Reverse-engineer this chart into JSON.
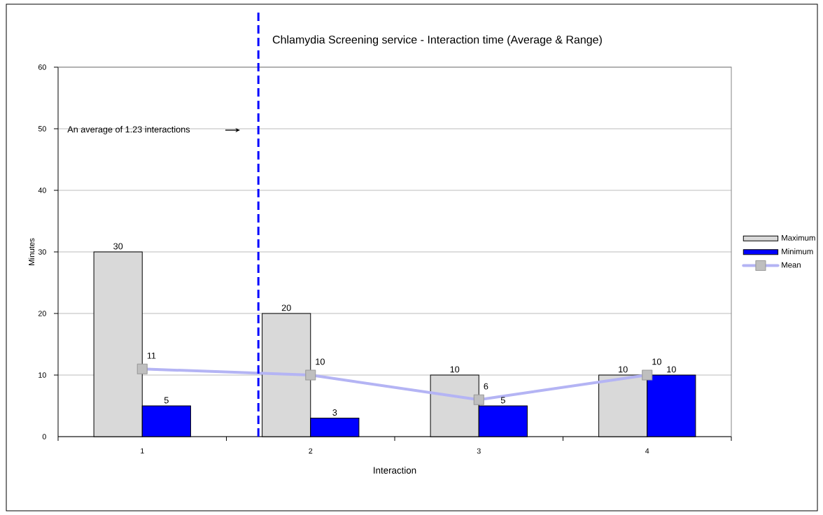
{
  "chart_data": {
    "type": "bar",
    "title": "Chlamydia Screening service - Interaction time (Average & Range)",
    "xlabel": "Interaction",
    "ylabel": "Minutes",
    "x": [
      1,
      2,
      3,
      4
    ],
    "xlim": [
      0.5,
      4.5
    ],
    "xticks": [
      {
        "value": 0.5,
        "label": null
      },
      1,
      {
        "value": 1.5,
        "label": null
      },
      2,
      {
        "value": 2.5,
        "label": null
      },
      3,
      {
        "value": 3.5,
        "label": null
      },
      4,
      {
        "value": 4.5,
        "label": null
      }
    ],
    "ylim": [
      0,
      60
    ],
    "yticks": [
      0,
      10,
      20,
      30,
      40,
      50,
      60
    ],
    "series": [
      {
        "name": "Maximum",
        "color": "#d9d9d9",
        "values": [
          30,
          20,
          10,
          10
        ]
      },
      {
        "name": "Minimum",
        "color": "#0000ff",
        "values": [
          5,
          3,
          5,
          10
        ]
      },
      {
        "name": "Mean",
        "type": "line",
        "color": "#b4b4f4",
        "values": [
          11,
          10,
          6,
          10
        ]
      }
    ],
    "ref_lines": [
      {
        "axis": "x",
        "value": 1.69,
        "color": "#0000ff",
        "line_style": "dashed"
      }
    ],
    "annotations": [
      "An average of 1.23 interactions"
    ],
    "data_labels": true,
    "grid": "y",
    "legend": "right",
    "marker": "square"
  }
}
